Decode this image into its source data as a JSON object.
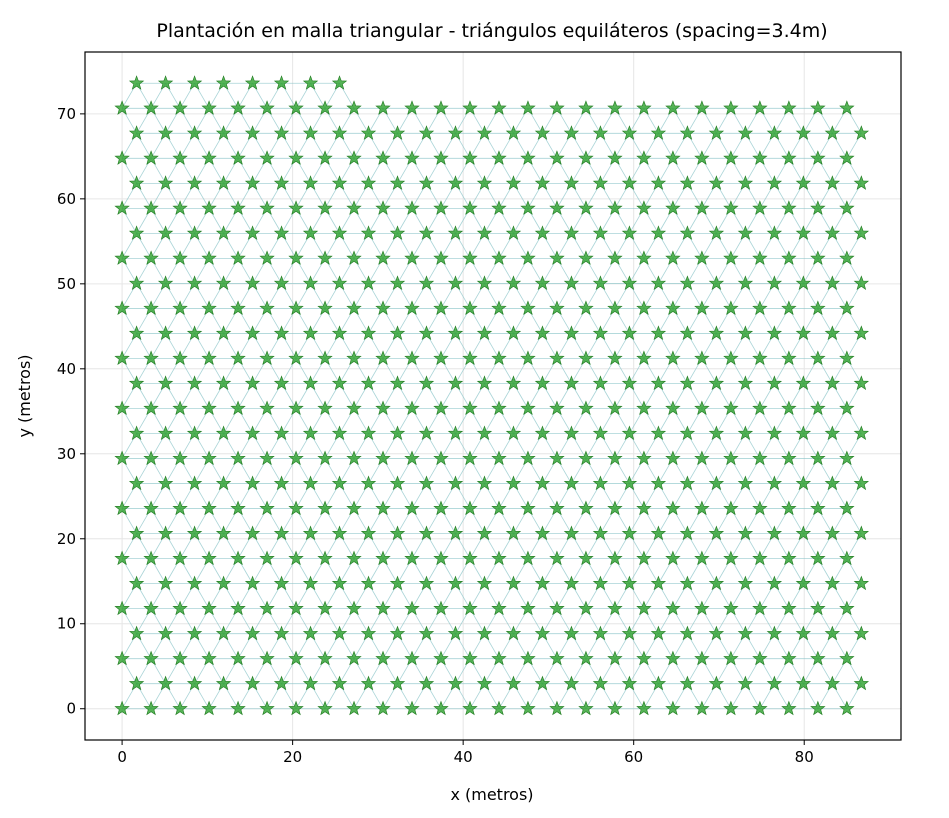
{
  "chart_data": {
    "type": "scatter",
    "title": "Plantación en malla triangular - triángulos equiláteros (spacing=3.4m)",
    "xlabel": "x (metros)",
    "ylabel": "y (metros)",
    "xlim": [
      -4.35,
      91.35
    ],
    "ylim": [
      -3.68,
      77.28
    ],
    "xticks": [
      0,
      20,
      40,
      60,
      80
    ],
    "yticks": [
      0,
      10,
      20,
      30,
      40,
      50,
      60,
      70
    ],
    "xtick_labels": [
      "0",
      "20",
      "40",
      "60",
      "80"
    ],
    "ytick_labels": [
      "0",
      "10",
      "20",
      "30",
      "40",
      "50",
      "60",
      "70"
    ],
    "grid": true,
    "legend": "none",
    "lattice": {
      "spacing": 3.4,
      "row_step": 2.944,
      "num_rows": 26,
      "even_row_x_start": 0,
      "even_row_count": 26,
      "odd_row_x_start": 1.7,
      "odd_row_count": 26,
      "top_row_index": 25,
      "top_row_count": 8
    },
    "colors": {
      "marker_fill": "#2ca02c",
      "edge_line": "#8cc6c9",
      "grid": "#e6e6e6",
      "axes": "#000000"
    }
  }
}
